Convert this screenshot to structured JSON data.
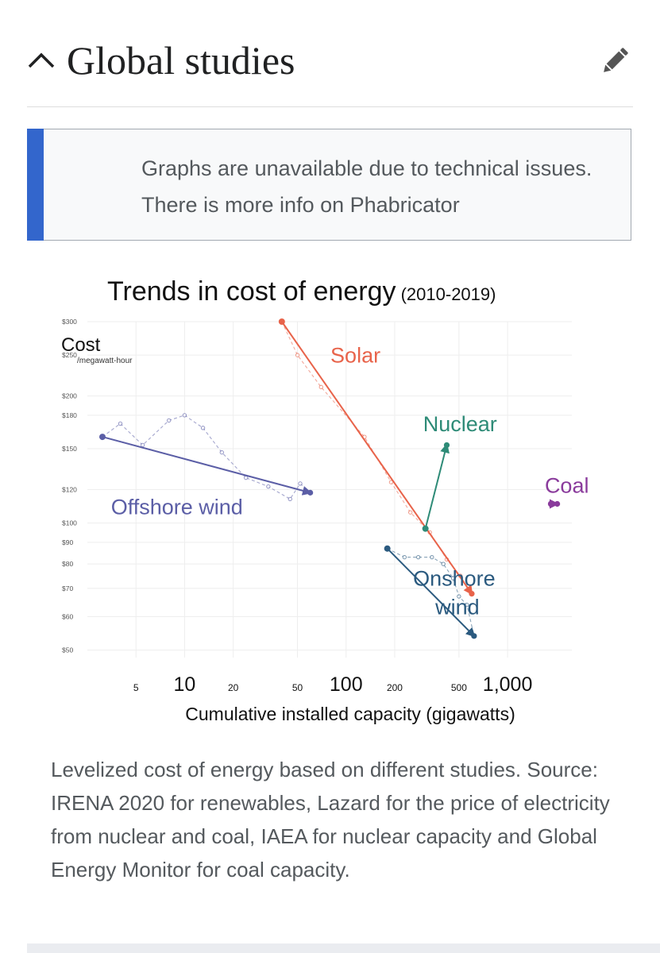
{
  "section": {
    "title": "Global studies"
  },
  "notice": {
    "text": "Graphs are unavailable due to technical issues. There is more info on Phabricator"
  },
  "caption": "Levelized cost of energy based on different studies. Source: IRENA 2020 for renewables, Lazard for the price of electricity from nuclear and coal, IAEA for nuclear capacity and Global Energy Monitor for coal capacity.",
  "icons": {
    "collapse": "chevron-up-icon",
    "edit": "pencil-icon"
  },
  "chart_data": {
    "type": "line",
    "title": "Trends in cost of energy",
    "title_suffix": "(2010-2019)",
    "ylabel": "Cost",
    "ylabel_unit": "/megawatt-hour",
    "xlabel": "Cumulative installed capacity (gigawatts)",
    "x_scale": "log",
    "y_scale": "log",
    "xlim": [
      2.5,
      2500
    ],
    "ylim": [
      48,
      300
    ],
    "y_ticks": [
      {
        "value": 300,
        "label": "$300"
      },
      {
        "value": 250,
        "label": "$250"
      },
      {
        "value": 200,
        "label": "$200"
      },
      {
        "value": 180,
        "label": "$180"
      },
      {
        "value": 150,
        "label": "$150"
      },
      {
        "value": 120,
        "label": "$120"
      },
      {
        "value": 100,
        "label": "$100"
      },
      {
        "value": 90,
        "label": "$90"
      },
      {
        "value": 80,
        "label": "$80"
      },
      {
        "value": 70,
        "label": "$70"
      },
      {
        "value": 60,
        "label": "$60"
      },
      {
        "value": 50,
        "label": "$50"
      }
    ],
    "x_ticks": [
      {
        "value": 5,
        "label": "5",
        "major": false
      },
      {
        "value": 10,
        "label": "10",
        "major": true
      },
      {
        "value": 20,
        "label": "20",
        "major": false
      },
      {
        "value": 50,
        "label": "50",
        "major": false
      },
      {
        "value": 100,
        "label": "100",
        "major": true
      },
      {
        "value": 200,
        "label": "200",
        "major": false
      },
      {
        "value": 500,
        "label": "500",
        "major": false
      },
      {
        "value": 1000,
        "label": "1,000",
        "major": true
      }
    ],
    "series": [
      {
        "name": "Solar",
        "color": "#e8634a",
        "start": [
          40,
          300
        ],
        "end": [
          600,
          68
        ],
        "yearly": [
          [
            40,
            300
          ],
          [
            50,
            250
          ],
          [
            70,
            210
          ],
          [
            130,
            160
          ],
          [
            190,
            125
          ],
          [
            250,
            106
          ],
          [
            330,
            95
          ],
          [
            420,
            82
          ],
          [
            510,
            75
          ],
          [
            600,
            68
          ]
        ],
        "label_at": [
          80,
          240
        ]
      },
      {
        "name": "Offshore wind",
        "color": "#5b5ea6",
        "start": [
          3.1,
          160
        ],
        "end": [
          60,
          118
        ],
        "yearly": [
          [
            3.1,
            160
          ],
          [
            4,
            172
          ],
          [
            5.5,
            153
          ],
          [
            8,
            175
          ],
          [
            10,
            180
          ],
          [
            13,
            168
          ],
          [
            17,
            147
          ],
          [
            24,
            128
          ],
          [
            33,
            122
          ],
          [
            45,
            114
          ],
          [
            52,
            124
          ],
          [
            60,
            118
          ]
        ],
        "label_at": [
          3.5,
          105
        ]
      },
      {
        "name": "Onshore wind",
        "color": "#2b5a7f",
        "start": [
          180,
          87
        ],
        "end": [
          620,
          54
        ],
        "yearly": [
          [
            180,
            87
          ],
          [
            230,
            83
          ],
          [
            280,
            83
          ],
          [
            340,
            83
          ],
          [
            400,
            80
          ],
          [
            460,
            74
          ],
          [
            500,
            67
          ],
          [
            560,
            64
          ],
          [
            620,
            54
          ]
        ],
        "label_at": [
          260,
          71
        ]
      },
      {
        "name": "Nuclear",
        "color": "#2e8b77",
        "start": [
          310,
          97
        ],
        "end": [
          420,
          153
        ],
        "yearly": [
          [
            310,
            97
          ],
          [
            420,
            153
          ]
        ],
        "label_at": [
          300,
          165
        ]
      },
      {
        "name": "Coal",
        "color": "#8a3b9c",
        "start": [
          1860,
          111
        ],
        "end": [
          2030,
          111
        ],
        "yearly": [
          [
            1860,
            111
          ],
          [
            1950,
            111
          ],
          [
            2030,
            111
          ]
        ],
        "label_at": [
          1700,
          118
        ]
      }
    ]
  }
}
